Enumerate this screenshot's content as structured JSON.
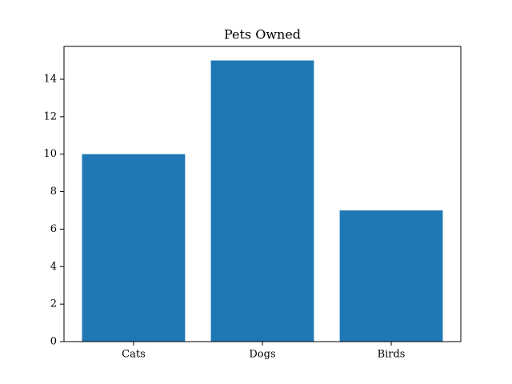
{
  "chart_data": {
    "type": "bar",
    "title": "Pets Owned",
    "categories": [
      "Cats",
      "Dogs",
      "Birds"
    ],
    "values": [
      10,
      15,
      7
    ],
    "color": "#1f77b4",
    "ylim": [
      0,
      15.75
    ],
    "yticks": [
      0,
      2,
      4,
      6,
      8,
      10,
      12,
      14
    ],
    "grid": false
  }
}
